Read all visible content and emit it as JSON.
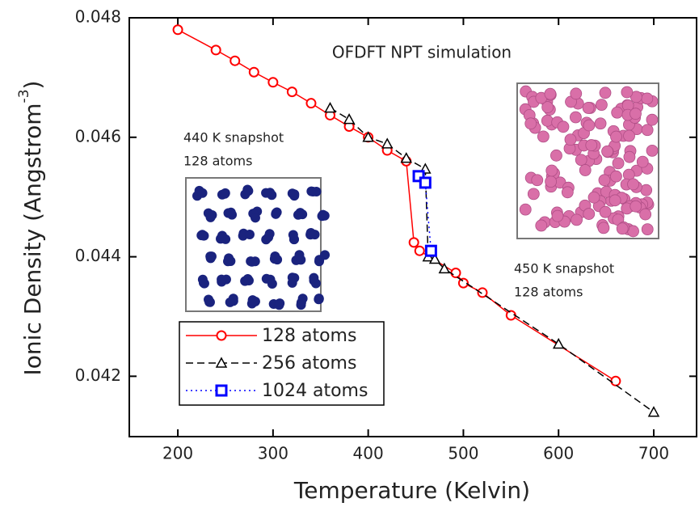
{
  "chart_data": {
    "type": "line",
    "x_label": "Temperature (Kelvin)",
    "y_label": {
      "text": "Ionic Density (Angstrom",
      "superscript": "-3",
      "close": ")"
    },
    "annotations": [
      "OFDFT NPT simulation",
      "440 K snapshot",
      "128 atoms",
      "450 K snapshot",
      "128 atoms"
    ],
    "xlim": [
      149,
      745
    ],
    "ylim": [
      0.04099,
      0.048
    ],
    "xticks": [
      200,
      300,
      400,
      500,
      600,
      700
    ],
    "yticks": [
      0.042,
      0.044,
      0.046,
      0.048
    ],
    "series": [
      {
        "name": "128 atoms",
        "color": "#ff0000",
        "marker": "circle",
        "dash": "solid",
        "x": [
          200,
          240,
          260,
          280,
          300,
          320,
          340,
          360,
          380,
          400,
          420,
          440,
          448,
          454,
          492,
          500,
          520,
          550,
          660
        ],
        "values": [
          0.0478,
          0.04746,
          0.04728,
          0.04709,
          0.04692,
          0.04676,
          0.04657,
          0.04637,
          0.04618,
          0.046,
          0.04578,
          0.0456,
          0.04424,
          0.0441,
          0.04373,
          0.04356,
          0.0434,
          0.04302,
          0.04192
        ]
      },
      {
        "name": "256 atoms",
        "color": "#000000",
        "marker": "triangle",
        "dash": "dashed",
        "x": [
          360,
          380,
          400,
          420,
          440,
          460,
          463,
          470,
          480,
          600,
          700
        ],
        "values": [
          0.04649,
          0.0463,
          0.046,
          0.04589,
          0.04565,
          0.04547,
          0.044,
          0.04396,
          0.0438,
          0.04254,
          0.0414
        ]
      },
      {
        "name": "1024 atoms",
        "color": "#0000ff",
        "marker": "square",
        "dash": "dotted",
        "x": [
          453,
          460,
          466
        ],
        "values": [
          0.04535,
          0.04524,
          0.0441
        ]
      }
    ]
  }
}
